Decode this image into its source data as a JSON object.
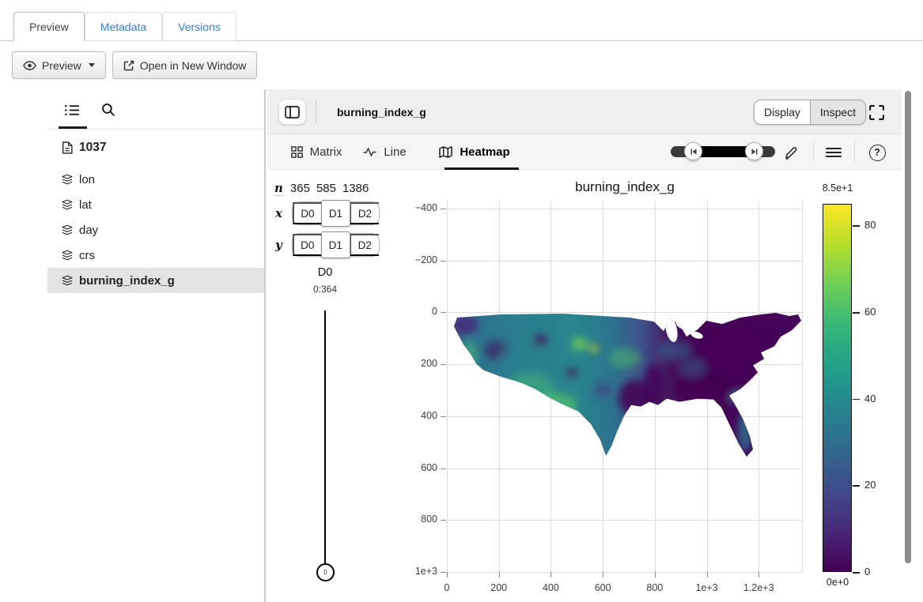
{
  "file_tabs": {
    "items": [
      {
        "label": "Preview",
        "active": true
      },
      {
        "label": "Metadata",
        "active": false
      },
      {
        "label": "Versions",
        "active": false
      }
    ]
  },
  "actions": {
    "preview_button": "Preview",
    "open_button": "Open in New Window"
  },
  "explorer": {
    "root_label": "1037",
    "items": [
      {
        "label": "lon",
        "selected": false
      },
      {
        "label": "lat",
        "selected": false
      },
      {
        "label": "day",
        "selected": false
      },
      {
        "label": "crs",
        "selected": false
      },
      {
        "label": "burning_index_g",
        "selected": true
      }
    ]
  },
  "vis": {
    "title": "burning_index_g",
    "display_toggle": {
      "options": [
        "Display",
        "Inspect"
      ],
      "active": "Display"
    },
    "tabs": [
      {
        "label": "Matrix",
        "icon": "grid-icon",
        "active": false
      },
      {
        "label": "Line",
        "icon": "waveform-icon",
        "active": false
      },
      {
        "label": "Heatmap",
        "icon": "map-icon",
        "active": true
      }
    ],
    "toolbar_icons": [
      "skip-back-icon",
      "skip-forward-icon",
      "pencil-icon",
      "hamburger-icon",
      "help-icon"
    ],
    "help_glyph": "?",
    "mapper": {
      "n_label": "n",
      "dim_sizes": [
        "365",
        "585",
        "1386"
      ],
      "x_label": "x",
      "x_options": [
        "D0",
        "D1",
        "D2"
      ],
      "x_selected": "D1",
      "y_label": "y",
      "y_options": [
        "D0",
        "D1",
        "D2"
      ],
      "y_selected": "D1"
    },
    "dim_slider": {
      "label": "D0",
      "range": "0:364",
      "value": "0"
    }
  },
  "chart_data": {
    "type": "heatmap",
    "title": "burning_index_g",
    "x_ticks": [
      "0",
      "200",
      "400",
      "600",
      "800",
      "1e+3",
      "1.2e+3"
    ],
    "x_tick_values": [
      0,
      200,
      400,
      600,
      800,
      1000,
      1200
    ],
    "xlim": [
      0,
      1370
    ],
    "y_ticks": [
      "−400",
      "−200",
      "0",
      "200",
      "400",
      "600",
      "800",
      "1e+3"
    ],
    "y_tick_values": [
      -400,
      -200,
      0,
      200,
      400,
      600,
      800,
      1000
    ],
    "ylim": [
      -430,
      1000
    ],
    "y_axis_inverted": true,
    "grid": true,
    "data_extent": {
      "x": [
        0,
        1386
      ],
      "y": [
        0,
        585
      ]
    },
    "colorbar": {
      "scale": "viridis",
      "min": 0,
      "max": 85,
      "max_label": "8.5e+1",
      "min_label": "0e+0",
      "tick_labels": [
        "80",
        "60",
        "40",
        "20",
        "0"
      ],
      "tick_values": [
        80,
        60,
        40,
        20,
        0
      ]
    },
    "description": "Continental US grid of burning index; high values (teal/green/yellow) across the western US and southern plains, near-zero (dark purple) across the east, teal along the southeast coast and Florida, Great Lakes masked white"
  }
}
